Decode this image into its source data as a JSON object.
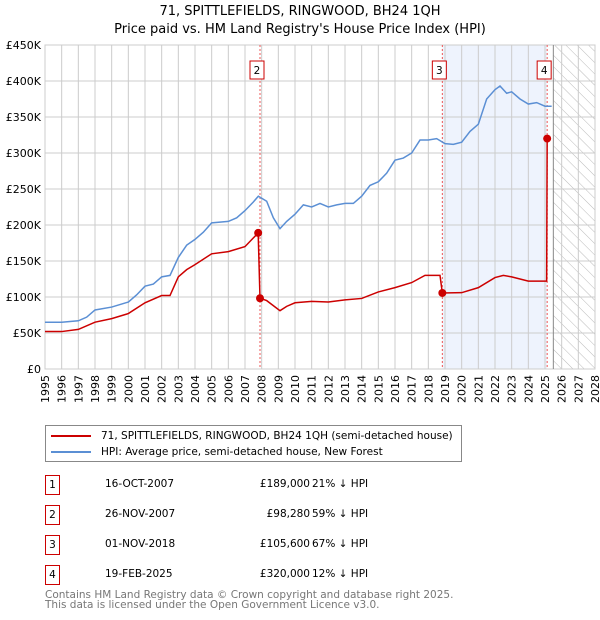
{
  "header": {
    "title": "71, SPITTLEFIELDS, RINGWOOD, BH24 1QH",
    "subtitle": "Price paid vs. HM Land Registry's House Price Index (HPI)"
  },
  "chart_data": {
    "type": "line",
    "xlim": [
      1995,
      2028
    ],
    "ylim": [
      0,
      450000
    ],
    "x_ticks": [
      "1995",
      "1996",
      "1997",
      "1998",
      "1999",
      "2000",
      "2001",
      "2002",
      "2003",
      "2004",
      "2005",
      "2006",
      "2007",
      "2008",
      "2009",
      "2010",
      "2011",
      "2012",
      "2013",
      "2014",
      "2015",
      "2016",
      "2017",
      "2018",
      "2019",
      "2020",
      "2021",
      "2022",
      "2023",
      "2024",
      "2025",
      "2026",
      "2027",
      "2028"
    ],
    "y_ticks": [
      {
        "v": 0,
        "l": "£0"
      },
      {
        "v": 50000,
        "l": "£50K"
      },
      {
        "v": 100000,
        "l": "£100K"
      },
      {
        "v": 150000,
        "l": "£150K"
      },
      {
        "v": 200000,
        "l": "£200K"
      },
      {
        "v": 250000,
        "l": "£250K"
      },
      {
        "v": 300000,
        "l": "£300K"
      },
      {
        "v": 350000,
        "l": "£350K"
      },
      {
        "v": 400000,
        "l": "£400K"
      },
      {
        "v": 450000,
        "l": "£450K"
      }
    ],
    "shaded_range": [
      2018.84,
      2025.13
    ],
    "forecast_hatch_from": 2025.5,
    "series": [
      {
        "name": "HPI",
        "color": "#5b8fd4",
        "points": [
          [
            1995,
            65
          ],
          [
            1996,
            65
          ],
          [
            1997,
            67
          ],
          [
            1997.5,
            72
          ],
          [
            1998,
            82
          ],
          [
            1999,
            86
          ],
          [
            2000,
            93
          ],
          [
            2000.5,
            103
          ],
          [
            2001,
            115
          ],
          [
            2001.5,
            118
          ],
          [
            2002,
            128
          ],
          [
            2002.5,
            130
          ],
          [
            2003,
            155
          ],
          [
            2003.5,
            172
          ],
          [
            2004,
            180
          ],
          [
            2004.5,
            190
          ],
          [
            2005,
            203
          ],
          [
            2006,
            205
          ],
          [
            2006.5,
            210
          ],
          [
            2007,
            220
          ],
          [
            2007.5,
            232
          ],
          [
            2007.8,
            240
          ],
          [
            2008.3,
            233
          ],
          [
            2008.7,
            210
          ],
          [
            2009.1,
            195
          ],
          [
            2009.5,
            205
          ],
          [
            2010,
            215
          ],
          [
            2010.5,
            228
          ],
          [
            2011,
            225
          ],
          [
            2011.5,
            230
          ],
          [
            2012,
            225
          ],
          [
            2012.5,
            228
          ],
          [
            2013,
            230
          ],
          [
            2013.5,
            230
          ],
          [
            2014,
            240
          ],
          [
            2014.5,
            255
          ],
          [
            2015,
            260
          ],
          [
            2015.5,
            272
          ],
          [
            2016,
            290
          ],
          [
            2016.5,
            293
          ],
          [
            2017,
            300
          ],
          [
            2017.5,
            318
          ],
          [
            2018,
            318
          ],
          [
            2018.5,
            320
          ],
          [
            2019,
            313
          ],
          [
            2019.5,
            312
          ],
          [
            2020,
            315
          ],
          [
            2020.5,
            330
          ],
          [
            2021,
            340
          ],
          [
            2021.5,
            375
          ],
          [
            2022,
            388
          ],
          [
            2022.3,
            393
          ],
          [
            2022.7,
            383
          ],
          [
            2023,
            385
          ],
          [
            2023.5,
            375
          ],
          [
            2024,
            368
          ],
          [
            2024.5,
            370
          ],
          [
            2025,
            365
          ],
          [
            2025.4,
            365
          ]
        ]
      },
      {
        "name": "Price paid",
        "color": "#cc0000",
        "points": [
          [
            1995,
            52
          ],
          [
            1996,
            52
          ],
          [
            1997,
            55
          ],
          [
            1998,
            65
          ],
          [
            1999,
            70
          ],
          [
            2000,
            77
          ],
          [
            2001,
            92
          ],
          [
            2002,
            102
          ],
          [
            2002.5,
            102
          ],
          [
            2003,
            128
          ],
          [
            2003.5,
            138
          ],
          [
            2004,
            145
          ],
          [
            2005,
            160
          ],
          [
            2006,
            163
          ],
          [
            2007,
            170
          ],
          [
            2007.79,
            189
          ],
          [
            2007.9,
            98.28
          ],
          [
            2008.3,
            95
          ],
          [
            2009.1,
            81
          ],
          [
            2009.5,
            87
          ],
          [
            2010,
            92
          ],
          [
            2011,
            94
          ],
          [
            2012,
            93
          ],
          [
            2013,
            96
          ],
          [
            2014,
            98
          ],
          [
            2015,
            107
          ],
          [
            2016,
            113
          ],
          [
            2017,
            120
          ],
          [
            2017.8,
            130
          ],
          [
            2018.7,
            130
          ],
          [
            2018.84,
            105.6
          ],
          [
            2020,
            106
          ],
          [
            2021,
            113
          ],
          [
            2022,
            127
          ],
          [
            2022.5,
            130
          ],
          [
            2023,
            128
          ],
          [
            2024,
            122
          ],
          [
            2025.1,
            122
          ],
          [
            2025.13,
            320
          ],
          [
            2025.3,
            322
          ]
        ]
      }
    ],
    "markers": [
      {
        "label": "1",
        "x": 2007.79,
        "y": 189000
      },
      {
        "label": "2",
        "x": 2007.9,
        "y": 98280
      },
      {
        "label": "3",
        "x": 2018.84,
        "y": 105600
      },
      {
        "label": "4",
        "x": 2025.13,
        "y": 320000
      }
    ],
    "flag_labels": [
      "2",
      "3",
      "4"
    ]
  },
  "legend": {
    "items": [
      {
        "label": "71, SPITTLEFIELDS, RINGWOOD, BH24 1QH (semi-detached house)",
        "color": "#cc0000"
      },
      {
        "label": "HPI: Average price, semi-detached house, New Forest",
        "color": "#5b8fd4"
      }
    ]
  },
  "transactions": [
    {
      "num": "1",
      "date": "16-OCT-2007",
      "price": "£189,000",
      "hpi": "21% ↓ HPI"
    },
    {
      "num": "2",
      "date": "26-NOV-2007",
      "price": "£98,280",
      "hpi": "59% ↓ HPI"
    },
    {
      "num": "3",
      "date": "01-NOV-2018",
      "price": "£105,600",
      "hpi": "67% ↓ HPI"
    },
    {
      "num": "4",
      "date": "19-FEB-2025",
      "price": "£320,000",
      "hpi": "12% ↓ HPI"
    }
  ],
  "footer": {
    "line1": "Contains HM Land Registry data © Crown copyright and database right 2025.",
    "line2": "This data is licensed under the Open Government Licence v3.0."
  }
}
